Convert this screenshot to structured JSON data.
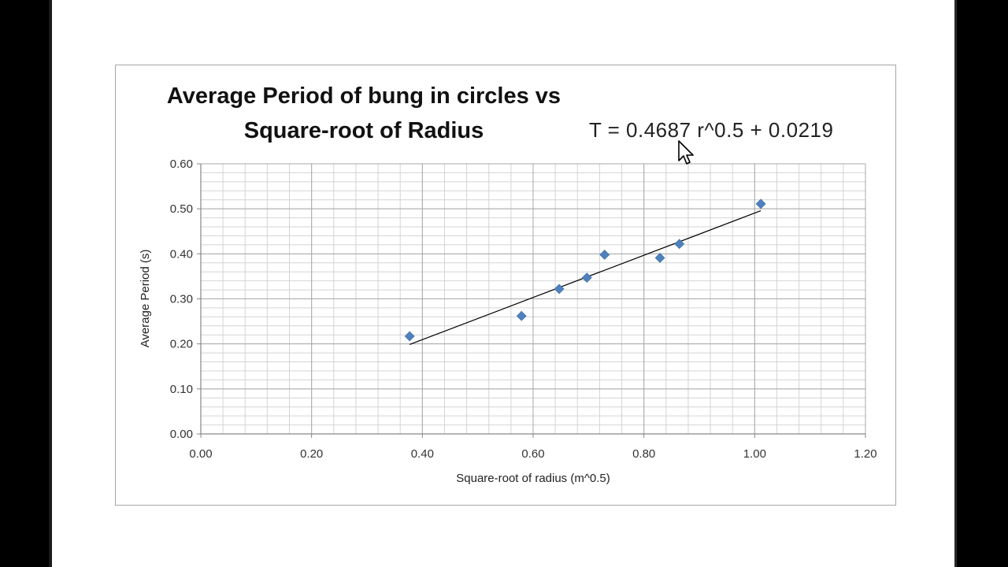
{
  "chart_data": {
    "type": "scatter",
    "title": "Average Period of bung in circles vs Square-root of Radius",
    "title_lines": [
      "Average Period of bung in circles vs",
      "Square-root of Radius"
    ],
    "xlabel": "Square-root of radius (m^0.5)",
    "ylabel": "Average Period (s)",
    "xlim": [
      0,
      1.2
    ],
    "ylim": [
      0,
      0.6
    ],
    "x_ticks": [
      "0.00",
      "0.20",
      "0.40",
      "0.60",
      "0.80",
      "1.00",
      "1.20"
    ],
    "y_ticks": [
      "0.00",
      "0.10",
      "0.20",
      "0.30",
      "0.40",
      "0.50",
      "0.60"
    ],
    "grid": true,
    "series": [
      {
        "x": [
          0.377,
          0.579,
          0.647,
          0.697,
          0.729,
          0.829,
          0.864,
          1.011
        ],
        "y": [
          0.217,
          0.262,
          0.322,
          0.347,
          0.398,
          0.391,
          0.422,
          0.511
        ],
        "color": "#4f81bd",
        "marker": "diamond"
      }
    ],
    "trendline": {
      "slope": 0.4687,
      "intercept": 0.0219,
      "x_range": [
        0.377,
        1.011
      ],
      "color": "#000000"
    },
    "equation_label": "T = 0.4687 r^0.5 + 0.0219"
  }
}
